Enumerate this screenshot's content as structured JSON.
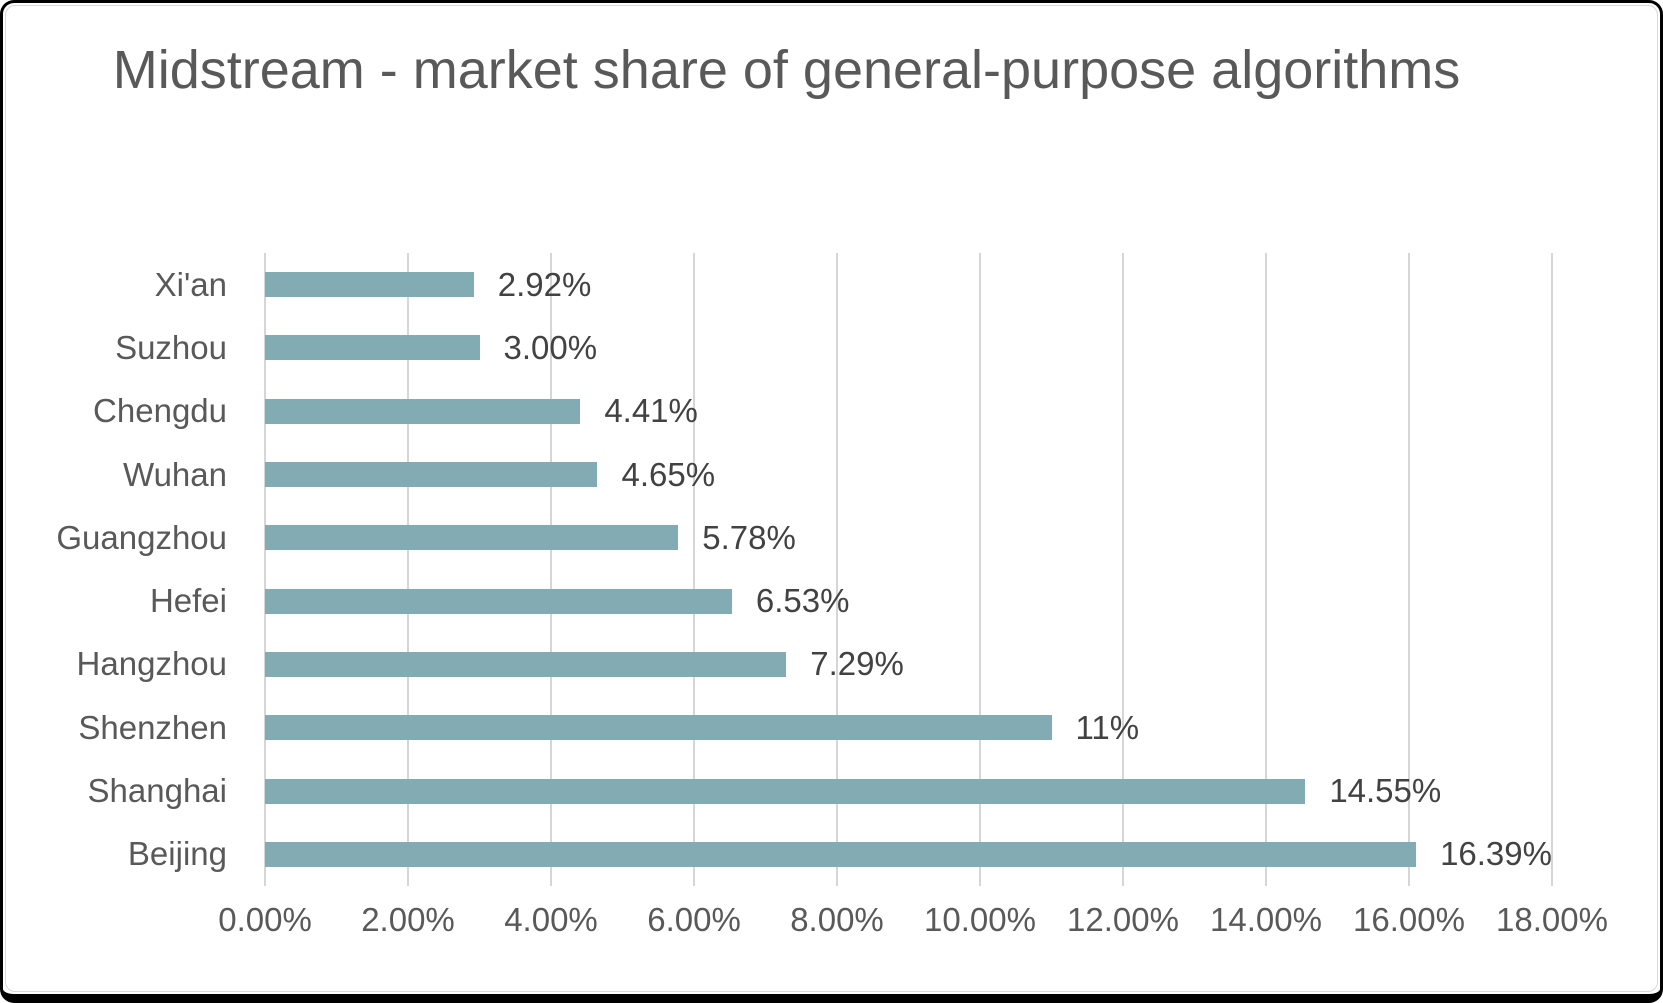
{
  "chart_data": {
    "type": "bar",
    "orientation": "horizontal",
    "title": "Midstream - market share of general-purpose algorithms",
    "categories": [
      "Xi'an",
      "Suzhou",
      "Chengdu",
      "Wuhan",
      "Guangzhou",
      "Hefei",
      "Hangzhou",
      "Shenzhen",
      "Shanghai",
      "Beijing"
    ],
    "values": [
      2.92,
      3.0,
      4.41,
      4.65,
      5.78,
      6.53,
      7.29,
      11,
      14.55,
      16.39
    ],
    "data_labels": [
      "2.92%",
      "3.00%",
      "4.41%",
      "4.65%",
      "5.78%",
      "6.53%",
      "7.29%",
      "11%",
      "14.55%",
      "16.39%"
    ],
    "x_axis": {
      "min": 0,
      "max": 18,
      "tick_step": 2,
      "tick_labels": [
        "0.00%",
        "2.00%",
        "4.00%",
        "6.00%",
        "8.00%",
        "10.00%",
        "12.00%",
        "14.00%",
        "16.00%",
        "18.00%"
      ]
    },
    "grid": true,
    "legend": false,
    "colors": {
      "bar": "#82ABB4",
      "gridline": "#D6D6D6",
      "title_text": "#595959",
      "axis_text": "#595959",
      "data_label_text": "#424242",
      "chart_border": "#D9D9D9",
      "frame_border": "#000000",
      "background": "#FFFFFF"
    }
  }
}
